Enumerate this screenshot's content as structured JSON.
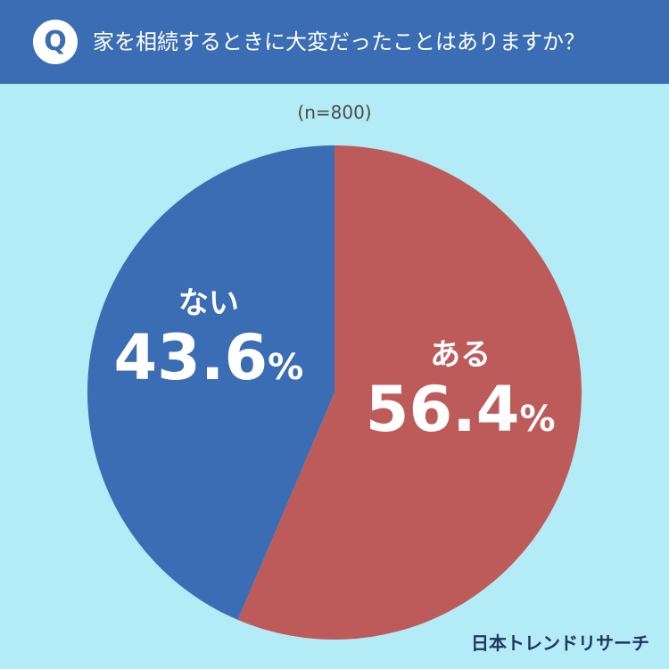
{
  "header": {
    "badge": "Q",
    "question": "家を相続するときに大変だったことはありますか？"
  },
  "sample_size": "(n=800)",
  "brand": "日本トレンドリサーチ",
  "colors": {
    "background": "#b3ecf6",
    "header": "#3a6db3",
    "aru": "#bd5b5a",
    "nai": "#3a6db3"
  },
  "chart_data": {
    "type": "pie",
    "title": "家を相続するときに大変だったことはありますか？",
    "subtitle": "(n=800)",
    "unit": "%",
    "slices": [
      {
        "label": "ある",
        "value": 56.4,
        "value_label": "56.4",
        "color": "#bd5b5a"
      },
      {
        "label": "ない",
        "value": 43.6,
        "value_label": "43.6",
        "color": "#3a6db3"
      }
    ],
    "start": "12 o'clock",
    "direction": "clockwise",
    "legend": "none (labels inside slices)"
  }
}
